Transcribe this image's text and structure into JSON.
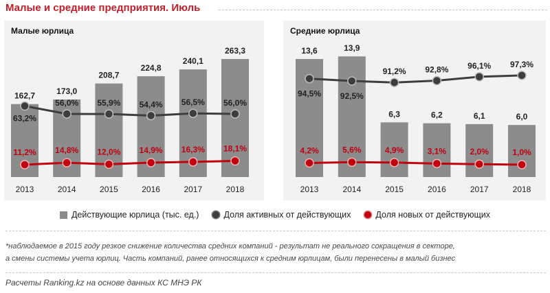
{
  "title": "Малые и средние предприятия. Июль",
  "colors": {
    "bar": "#8c8c8c",
    "active_line": "#3d3d3d",
    "new_line": "#c0000f",
    "panel_bg": "#f2f2f2",
    "title": "#c0202a"
  },
  "legend": {
    "bars": "Действующие юрлица (тыс. ед.)",
    "active": "Доля активных от действующих",
    "new": "Доля новых от действующих"
  },
  "footnote": {
    "line1": "*наблюдаемое в 2015 году резкое снижение количества средних компаний - результат не реального сокращения в секторе,",
    "line2": "а смены системы учета юрлиц. Часть компаний, ранее относящихся к средним юрлицам, были перенесены в малый бизнес"
  },
  "source": "Расчеты Ranking.kz на основе данных КС МНЭ РК",
  "chart_data": [
    {
      "type": "bar",
      "title": "Малые юрлица",
      "categories": [
        "2013",
        "2014",
        "2015",
        "2016",
        "2017",
        "2018"
      ],
      "series": [
        {
          "name": "Действующие юрлица (тыс. ед.)",
          "kind": "bar",
          "values": [
            162.7,
            173.0,
            208.7,
            224.8,
            240.1,
            263.3
          ],
          "labels": [
            "162,7",
            "173,0",
            "208,7",
            "224,8",
            "240,1",
            "263,3"
          ]
        },
        {
          "name": "Доля активных от действующих",
          "kind": "line",
          "values": [
            63.2,
            56.0,
            55.9,
            54.4,
            56.5,
            56.0
          ],
          "labels": [
            "63,2%",
            "56,0%",
            "55,9%",
            "54,4%",
            "56,5%",
            "56,0%"
          ]
        },
        {
          "name": "Доля новых от действующих",
          "kind": "line",
          "values": [
            11.2,
            14.8,
            12.0,
            14.9,
            16.3,
            18.1
          ],
          "labels": [
            "11,2%",
            "14,8%",
            "12,0%",
            "14,9%",
            "16,3%",
            "18,1%"
          ]
        }
      ],
      "bar_ylim": [
        0,
        300
      ],
      "line_ylim": [
        0,
        100
      ]
    },
    {
      "type": "bar",
      "title": "Средние юрлица",
      "categories": [
        "2013",
        "2014",
        "2015",
        "2016",
        "2017",
        "2018"
      ],
      "series": [
        {
          "name": "Действующие юрлица (тыс. ед.)",
          "kind": "bar",
          "values": [
            13.6,
            13.9,
            6.3,
            6.2,
            6.1,
            6.0
          ],
          "labels": [
            "13,6",
            "13,9",
            "6,3",
            "6,2",
            "6,1",
            "6,0"
          ]
        },
        {
          "name": "Доля активных от действующих",
          "kind": "line",
          "values": [
            94.5,
            92.5,
            91.2,
            92.8,
            96.1,
            97.3
          ],
          "labels": [
            "94,5%",
            "92,5%",
            "91,2%",
            "92,8%",
            "96,1%",
            "97,3%"
          ]
        },
        {
          "name": "Доля новых от действующих",
          "kind": "line",
          "values": [
            4.2,
            5.6,
            4.9,
            3.1,
            2.0,
            1.0
          ],
          "labels": [
            "4,2%",
            "5,6%",
            "4,9%",
            "3,1%",
            "2,0%",
            "1,0%"
          ]
        }
      ],
      "bar_ylim": [
        0,
        15.5
      ],
      "line_ylim": [
        0,
        100
      ]
    }
  ]
}
